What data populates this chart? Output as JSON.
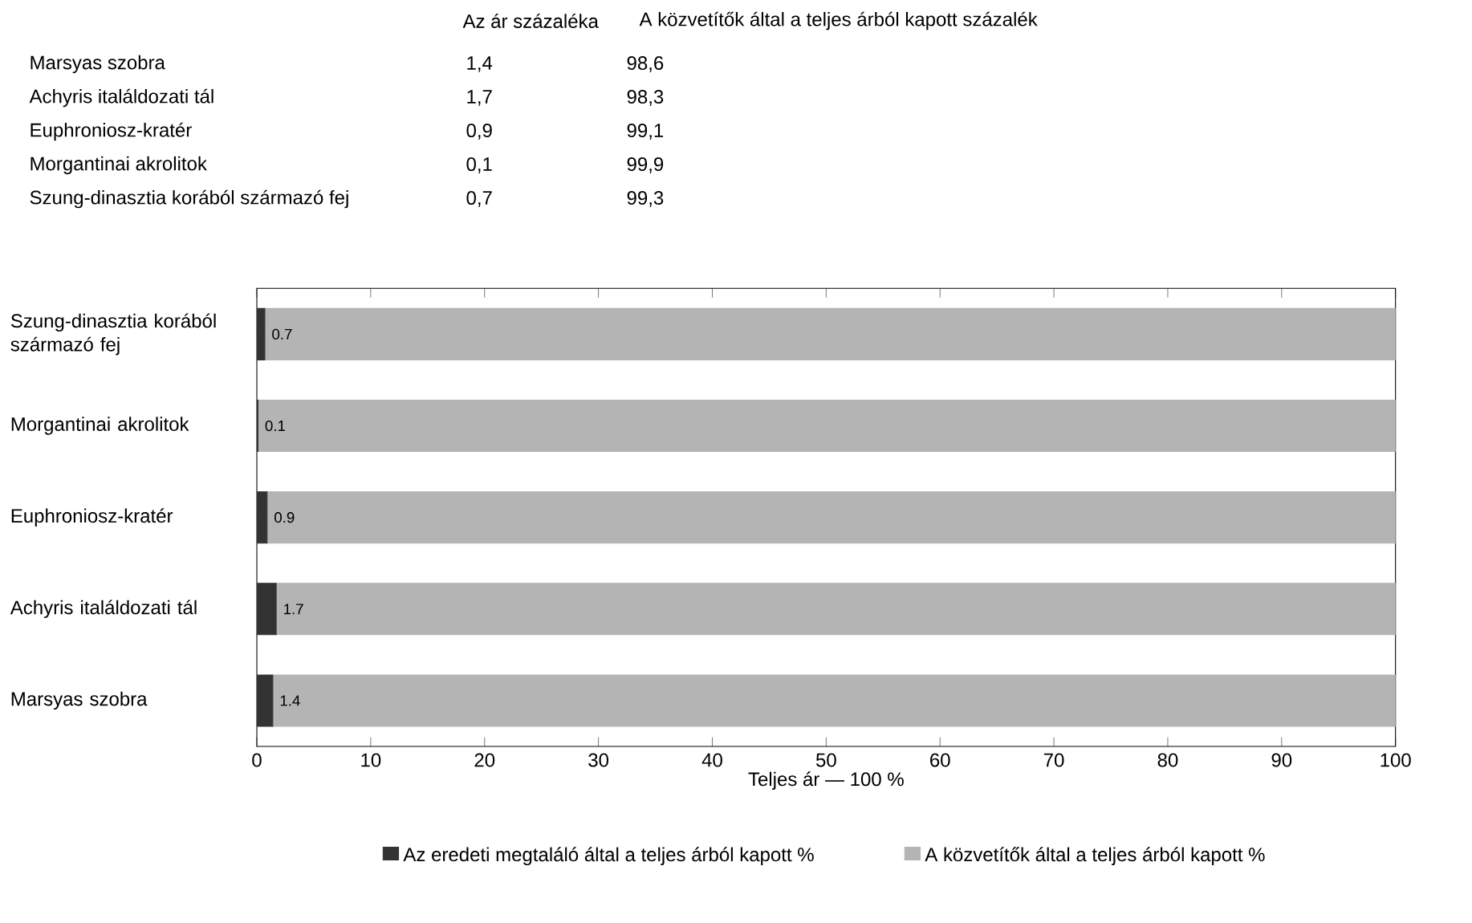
{
  "chart_data": {
    "type": "bar",
    "orientation": "horizontal",
    "stacked": true,
    "categories": [
      "Szung-dinasztia korából származó fej",
      "Morgantinai akrolitok",
      "Euphroniosz-kratér",
      "Achyris italáldozati tál",
      "Marsyas szobra"
    ],
    "series": [
      {
        "name": "Az eredeti megtaláló által a teljes árból kapott %",
        "color": "#333333",
        "values": [
          0.7,
          0.1,
          0.9,
          1.7,
          1.4
        ],
        "value_labels": [
          "0.7",
          "0.1",
          "0.9",
          "1.7",
          "1.4"
        ]
      },
      {
        "name": "A közvetítők által a teljes árból kapott %",
        "color": "#b4b4b4",
        "values": [
          99.3,
          99.9,
          99.1,
          98.3,
          98.6
        ]
      }
    ],
    "xlim": [
      0,
      100
    ],
    "xticks": [
      0,
      10,
      20,
      30,
      40,
      50,
      60,
      70,
      80,
      90,
      100
    ],
    "xlabel": "Teljes ár — 100 %",
    "legend": "bottom",
    "annotations": [
      "Az ár százaléka",
      "A közvetítők által a teljes árból kapott százalék",
      "Marsyas szobra",
      "1,4",
      "98,6",
      "Achyris italáldozati tál",
      "1,7",
      "98,3",
      "Euphroniosz-kratér",
      "0,9",
      "99,1",
      "Morgantinai akrolitok",
      "0,1",
      "99,9",
      "Szung-dinasztia korából származó fej",
      "0,7",
      "99,3"
    ]
  }
}
